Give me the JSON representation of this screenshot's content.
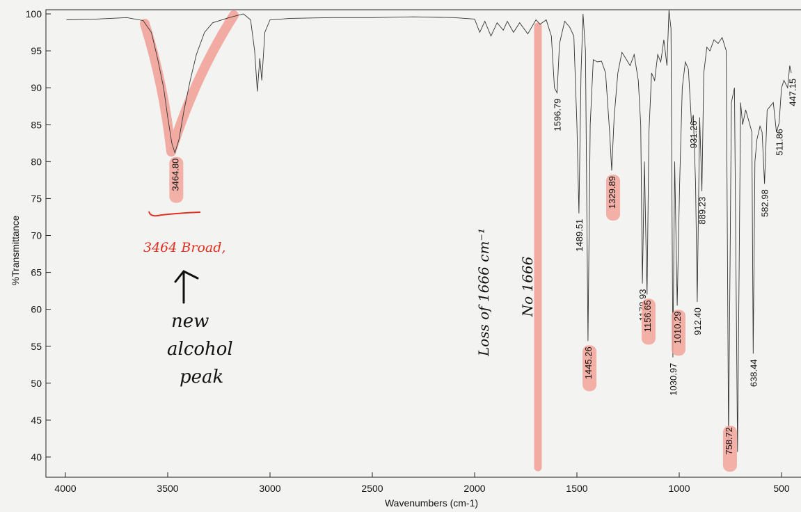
{
  "chart_data": {
    "type": "line",
    "xlabel": "Wavenumbers (cm-1)",
    "ylabel": "%Transmittance",
    "xlim": [
      4000,
      450
    ],
    "ylim": [
      38,
      101
    ],
    "x_reversed": true,
    "grid": false,
    "x_ticks": [
      4000,
      3500,
      3000,
      2500,
      2000,
      1500,
      1000,
      500
    ],
    "y_ticks": [
      100,
      95,
      90,
      85,
      80,
      75,
      70,
      65,
      60,
      55,
      50,
      45,
      40
    ],
    "series": [
      {
        "points": [
          [
            3995,
            99.2
          ],
          [
            3850,
            99.3
          ],
          [
            3700,
            99.5
          ],
          [
            3620,
            99.1
          ],
          [
            3580,
            97.5
          ],
          [
            3550,
            94
          ],
          [
            3520,
            90
          ],
          [
            3500,
            86
          ],
          [
            3480,
            82.5
          ],
          [
            3465,
            81.2
          ],
          [
            3445,
            83
          ],
          [
            3420,
            87
          ],
          [
            3390,
            91
          ],
          [
            3360,
            94.5
          ],
          [
            3320,
            97.5
          ],
          [
            3280,
            98.8
          ],
          [
            3200,
            99.5
          ],
          [
            3130,
            100
          ],
          [
            3095,
            99.2
          ],
          [
            3075,
            95
          ],
          [
            3062,
            89.5
          ],
          [
            3050,
            94
          ],
          [
            3040,
            91
          ],
          [
            3025,
            97.5
          ],
          [
            3000,
            99.2
          ],
          [
            2900,
            99.4
          ],
          [
            2700,
            99.5
          ],
          [
            2500,
            99.5
          ],
          [
            2300,
            99.6
          ],
          [
            2100,
            99.5
          ],
          [
            2000,
            99.3
          ],
          [
            1975,
            97.5
          ],
          [
            1950,
            99
          ],
          [
            1920,
            97
          ],
          [
            1890,
            98.8
          ],
          [
            1860,
            97.8
          ],
          [
            1840,
            99
          ],
          [
            1810,
            97.5
          ],
          [
            1780,
            98.8
          ],
          [
            1740,
            97.3
          ],
          [
            1700,
            99.2
          ],
          [
            1680,
            98.6
          ],
          [
            1650,
            99.2
          ],
          [
            1625,
            97
          ],
          [
            1610,
            90
          ],
          [
            1597,
            89.3
          ],
          [
            1585,
            96
          ],
          [
            1560,
            99
          ],
          [
            1535,
            98.2
          ],
          [
            1515,
            97
          ],
          [
            1500,
            85
          ],
          [
            1490,
            73
          ],
          [
            1480,
            92
          ],
          [
            1470,
            100
          ],
          [
            1458,
            95
          ],
          [
            1446,
            55.7
          ],
          [
            1435,
            85
          ],
          [
            1420,
            93.8
          ],
          [
            1400,
            93.5
          ],
          [
            1380,
            93.6
          ],
          [
            1360,
            92
          ],
          [
            1340,
            84
          ],
          [
            1330,
            78.8
          ],
          [
            1318,
            86
          ],
          [
            1300,
            92
          ],
          [
            1280,
            94.8
          ],
          [
            1262,
            94
          ],
          [
            1240,
            93
          ],
          [
            1220,
            94.5
          ],
          [
            1200,
            91
          ],
          [
            1188,
            85
          ],
          [
            1180,
            63.5
          ],
          [
            1170,
            80
          ],
          [
            1162,
            68
          ],
          [
            1157,
            62
          ],
          [
            1148,
            84
          ],
          [
            1135,
            92
          ],
          [
            1120,
            91
          ],
          [
            1105,
            94.5
          ],
          [
            1090,
            93.5
          ],
          [
            1075,
            96.5
          ],
          [
            1060,
            93
          ],
          [
            1050,
            100.5
          ],
          [
            1040,
            98
          ],
          [
            1031,
            53.5
          ],
          [
            1022,
            80
          ],
          [
            1010,
            60.5
          ],
          [
            998,
            77
          ],
          [
            985,
            90
          ],
          [
            970,
            93.5
          ],
          [
            955,
            92.5
          ],
          [
            940,
            85.3
          ],
          [
            931,
            86.3
          ],
          [
            920,
            77
          ],
          [
            912,
            61
          ],
          [
            900,
            86
          ],
          [
            889,
            76
          ],
          [
            880,
            92
          ],
          [
            865,
            95.5
          ],
          [
            850,
            95
          ],
          [
            830,
            96.5
          ],
          [
            810,
            96
          ],
          [
            790,
            96.8
          ],
          [
            770,
            95
          ],
          [
            758.7,
            42
          ],
          [
            745,
            88
          ],
          [
            730,
            90
          ],
          [
            715,
            40.7
          ],
          [
            700,
            88
          ],
          [
            690,
            85
          ],
          [
            675,
            87
          ],
          [
            660,
            85.5
          ],
          [
            645,
            84
          ],
          [
            638.4,
            54
          ],
          [
            630,
            80
          ],
          [
            620,
            83
          ],
          [
            605,
            84.8
          ],
          [
            595,
            84
          ],
          [
            583,
            77
          ],
          [
            570,
            87
          ],
          [
            555,
            87.5
          ],
          [
            540,
            88
          ],
          [
            525,
            84
          ],
          [
            512,
            85.2
          ],
          [
            500,
            90
          ],
          [
            488,
            91
          ],
          [
            470,
            90
          ],
          [
            460,
            93
          ],
          [
            452,
            92
          ]
        ]
      }
    ],
    "peak_labels": [
      {
        "x": 3464.8,
        "text": "3464.80"
      },
      {
        "x": 1596.79,
        "text": "1596.79"
      },
      {
        "x": 1489.51,
        "text": "1489.51"
      },
      {
        "x": 1445.26,
        "text": "1445.26"
      },
      {
        "x": 1329.89,
        "text": "1329.89"
      },
      {
        "x": 1179.93,
        "text": "1179.93"
      },
      {
        "x": 1156.65,
        "text": "1156.65"
      },
      {
        "x": 1030.97,
        "text": "1030.97"
      },
      {
        "x": 1010.29,
        "text": "1010.29"
      },
      {
        "x": 931.26,
        "text": "931.26"
      },
      {
        "x": 912.4,
        "text": "912.40"
      },
      {
        "x": 889.23,
        "text": "889.23"
      },
      {
        "x": 758.72,
        "text": "758.72"
      },
      {
        "x": 638.44,
        "text": "638.44"
      },
      {
        "x": 582.98,
        "text": "582.98"
      },
      {
        "x": 511.86,
        "text": "511.86"
      },
      {
        "x": 447.15,
        "text": "447.15"
      }
    ],
    "highlighted_peaks": [
      "3464.80",
      "1445.26",
      "1329.89",
      "1156.65",
      "1010.29",
      "758.72"
    ],
    "highlight_color": "#f2a39a",
    "annotations": [
      {
        "text": "3464 Broad,",
        "color": "#e03020"
      },
      {
        "text": "new",
        "color": "#111111"
      },
      {
        "text": "alcohol",
        "color": "#111111"
      },
      {
        "text": "peak",
        "color": "#111111"
      },
      {
        "text": "Loss of 1666 cm⁻¹",
        "color": "#111111"
      },
      {
        "text": "No 1666",
        "color": "#111111"
      }
    ]
  }
}
